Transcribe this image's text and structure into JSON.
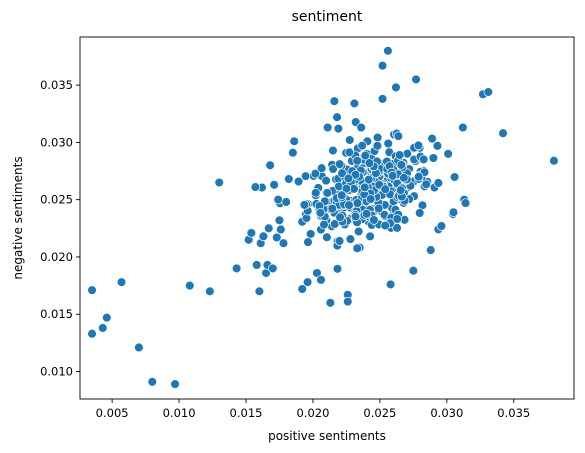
{
  "chart_data": {
    "type": "scatter",
    "title": "sentiment",
    "xlabel": "positive sentiments",
    "ylabel": "negative sentiments",
    "xlim": [
      0.0026,
      0.0395
    ],
    "ylim": [
      0.0076,
      0.0392
    ],
    "xticks": [
      0.005,
      0.01,
      0.015,
      0.02,
      0.025,
      0.03,
      0.035
    ],
    "xtick_labels": [
      "0.005",
      "0.010",
      "0.015",
      "0.020",
      "0.025",
      "0.030",
      "0.035"
    ],
    "yticks": [
      0.01,
      0.015,
      0.02,
      0.025,
      0.03,
      0.035
    ],
    "ytick_labels": [
      "0.010",
      "0.015",
      "0.020",
      "0.025",
      "0.030",
      "0.035"
    ],
    "grid": false,
    "marker_color": "#1f77b4",
    "series": [
      {
        "x": [
          0.0035,
          0.0035,
          0.0043,
          0.0046,
          0.0057,
          0.007,
          0.008,
          0.0097,
          0.0108,
          0.0123,
          0.013,
          0.0143,
          0.0152,
          0.0154,
          0.0157,
          0.0158,
          0.016,
          0.0161,
          0.0163,
          0.0165,
          0.0166,
          0.0167,
          0.0168,
          0.017,
          0.0171,
          0.0173,
          0.0174,
          0.0175,
          0.0176,
          0.0178,
          0.018,
          0.0182,
          0.0185,
          0.0186,
          0.0192,
          0.0196,
          0.0203,
          0.0206,
          0.0211,
          0.0213,
          0.0216,
          0.0218,
          0.0219,
          0.0226,
          0.0226,
          0.0231,
          0.0236,
          0.0252,
          0.0252,
          0.0256,
          0.0258,
          0.0262,
          0.0275,
          0.0277,
          0.0279,
          0.0288,
          0.0293,
          0.0296,
          0.0301,
          0.0305,
          0.0312,
          0.0313,
          0.0314,
          0.0327,
          0.0331,
          0.0342,
          0.038
        ],
        "y": [
          0.0171,
          0.0133,
          0.0138,
          0.0147,
          0.0178,
          0.0121,
          0.0091,
          0.0089,
          0.0175,
          0.017,
          0.0265,
          0.019,
          0.0215,
          0.0221,
          0.0261,
          0.0193,
          0.017,
          0.0212,
          0.0218,
          0.0186,
          0.0193,
          0.0225,
          0.028,
          0.019,
          0.0263,
          0.0217,
          0.025,
          0.0232,
          0.0224,
          0.0212,
          0.0248,
          0.0268,
          0.0291,
          0.0301,
          0.0172,
          0.0178,
          0.0186,
          0.018,
          0.0313,
          0.016,
          0.0336,
          0.0322,
          0.0312,
          0.0167,
          0.0161,
          0.0334,
          0.0313,
          0.0367,
          0.0338,
          0.038,
          0.0176,
          0.0348,
          0.0188,
          0.0355,
          0.027,
          0.0206,
          0.0297,
          0.0227,
          0.029,
          0.0239,
          0.0313,
          0.025,
          0.0247,
          0.0342,
          0.0344,
          0.0308,
          0.0284
        ],
        "cluster_center": [
          0.0242,
          0.0259
        ],
        "cluster_spread": [
          0.0023,
          0.0022
        ],
        "cluster_count": 390
      }
    ]
  }
}
